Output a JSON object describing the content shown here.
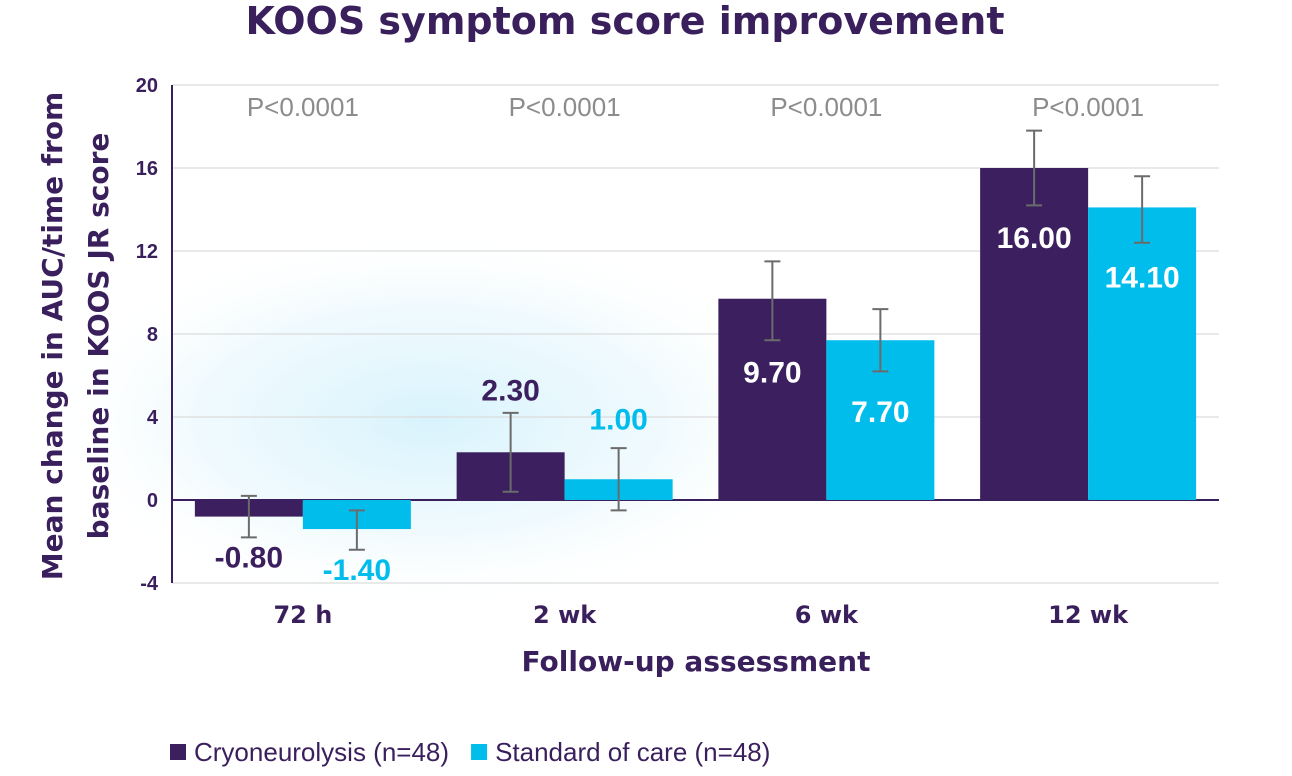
{
  "chart_data": {
    "type": "bar",
    "title": "KOOS symptom score improvement",
    "xlabel": "Follow-up assessment",
    "ylabel_lines": [
      "Mean change in AUC/time from",
      "baseline in KOOS JR score"
    ],
    "categories": [
      "72 h",
      "2 wk",
      "6 wk",
      "12 wk"
    ],
    "ylim": [
      -4,
      20
    ],
    "yticks": [
      20,
      16,
      12,
      8,
      4,
      0,
      -4
    ],
    "grid": true,
    "legend_position": "bottom-left",
    "p_values": [
      "P<0.0001",
      "P<0.0001",
      "P<0.0001",
      "P<0.0001"
    ],
    "series": [
      {
        "name": "Cryoneurolysis (n=48)",
        "color": "#3b1f5e",
        "values": [
          -0.8,
          2.3,
          9.7,
          16.0
        ],
        "labels": [
          "-0.80",
          "2.30",
          "9.70",
          "16.00"
        ],
        "error_low": [
          -1.8,
          0.4,
          7.7,
          14.2
        ],
        "error_high": [
          0.2,
          4.2,
          11.5,
          17.8
        ]
      },
      {
        "name": "Standard of care (n=48)",
        "color": "#00bdec",
        "values": [
          -1.4,
          1.0,
          7.7,
          14.1
        ],
        "labels": [
          "-1.40",
          "1.00",
          "7.70",
          "14.10"
        ],
        "error_low": [
          -2.4,
          -0.5,
          6.2,
          12.4
        ],
        "error_high": [
          -0.5,
          2.5,
          9.2,
          15.6
        ]
      }
    ]
  }
}
